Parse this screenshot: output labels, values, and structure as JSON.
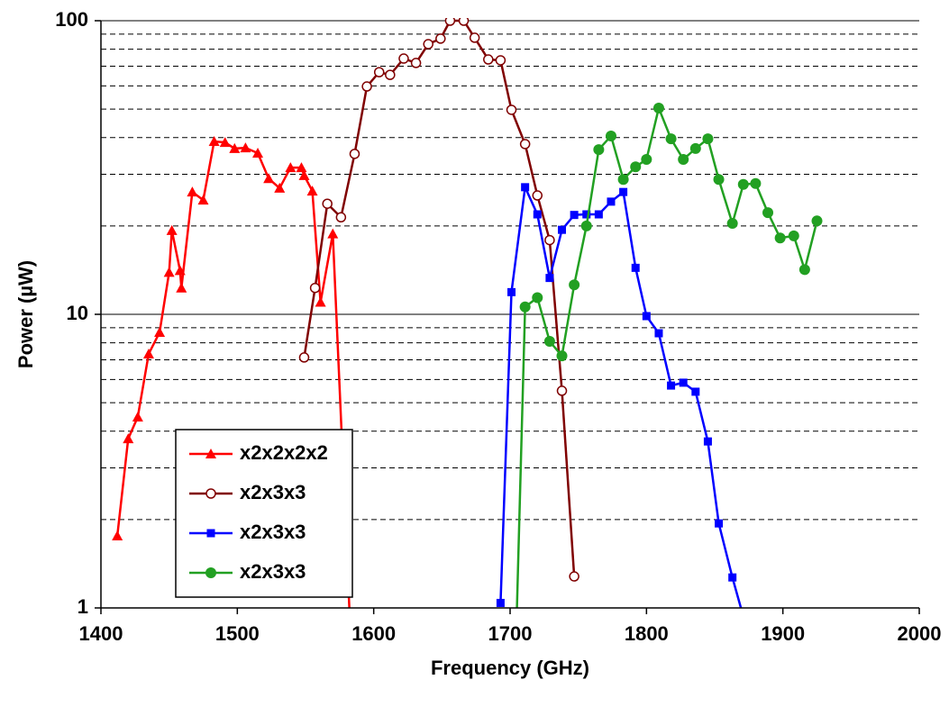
{
  "chart_data": {
    "type": "line",
    "xlabel": "Frequency (GHz)",
    "ylabel": "Power (µW)",
    "xlim": [
      1400,
      2000
    ],
    "xticks": [
      1400,
      1500,
      1600,
      1700,
      1800,
      1900,
      2000
    ],
    "ylim": [
      1,
      100
    ],
    "yticks": [
      1,
      10,
      100
    ],
    "log_y": true,
    "grid": true,
    "minor_grid": [
      2,
      3,
      4,
      5,
      6,
      7,
      8,
      9,
      20,
      30,
      40,
      50,
      60,
      70,
      80,
      90
    ],
    "legend": "lower left",
    "series": [
      {
        "name": "x2x2x2x2",
        "color": "#ff0000",
        "marker": "triangle",
        "x": [
          1412,
          1420,
          1427,
          1435,
          1443,
          1450,
          1452,
          1458,
          1459,
          1467,
          1475,
          1483,
          1491,
          1498,
          1506,
          1515,
          1523,
          1531,
          1539,
          1547,
          1549,
          1555,
          1561,
          1570,
          1585
        ],
        "values": [
          1.76,
          3.77,
          4.47,
          7.33,
          8.68,
          13.9,
          19.3,
          14.1,
          12.3,
          26.1,
          24.5,
          38.8,
          38.5,
          36.7,
          36.9,
          35.4,
          29.0,
          26.9,
          31.6,
          31.6,
          29.7,
          26.3,
          11.0,
          18.8,
          0.5
        ]
      },
      {
        "name": "x2x3x3",
        "color": "#800000",
        "marker": "open-circle",
        "x": [
          1549,
          1557,
          1566,
          1576,
          1586,
          1595,
          1604,
          1612,
          1622,
          1631,
          1640,
          1649,
          1656,
          1666,
          1674,
          1684,
          1693,
          1701,
          1711,
          1720,
          1729,
          1738,
          1747
        ],
        "values": [
          7.13,
          12.3,
          23.8,
          21.4,
          35.2,
          59.7,
          66.8,
          65.4,
          74.3,
          71.8,
          83.2,
          86.9,
          100,
          100,
          87.5,
          73.8,
          73.3,
          49.7,
          38.0,
          25.4,
          17.9,
          5.49,
          1.28
        ]
      },
      {
        "name": "x2x3x3",
        "color": "#0000ff",
        "marker": "square",
        "x": [
          1693,
          1701,
          1711,
          1720,
          1729,
          1738,
          1747,
          1756,
          1765,
          1774,
          1783,
          1792,
          1800,
          1809,
          1818,
          1827,
          1836,
          1845,
          1853,
          1863,
          1872
        ],
        "values": [
          1.04,
          11.9,
          27.1,
          21.9,
          13.3,
          19.4,
          21.8,
          21.9,
          21.9,
          24.2,
          26.1,
          14.4,
          9.86,
          8.62,
          5.72,
          5.85,
          5.45,
          3.69,
          1.94,
          1.27,
          0.9
        ]
      },
      {
        "name": "x2x3x3",
        "color": "#22a022",
        "marker": "circle",
        "x": [
          1704,
          1711,
          1720,
          1729,
          1738,
          1747,
          1756,
          1765,
          1774,
          1783,
          1792,
          1800,
          1809,
          1818,
          1827,
          1836,
          1845,
          1853,
          1863,
          1871,
          1880,
          1889,
          1898,
          1908,
          1916,
          1925
        ],
        "values": [
          0.67,
          10.6,
          11.4,
          8.09,
          7.22,
          12.6,
          20.0,
          36.4,
          40.5,
          28.8,
          31.8,
          33.7,
          50.4,
          39.6,
          33.7,
          36.7,
          39.6,
          28.8,
          20.4,
          27.7,
          27.9,
          22.2,
          18.2,
          18.5,
          14.2,
          20.8
        ]
      }
    ]
  }
}
